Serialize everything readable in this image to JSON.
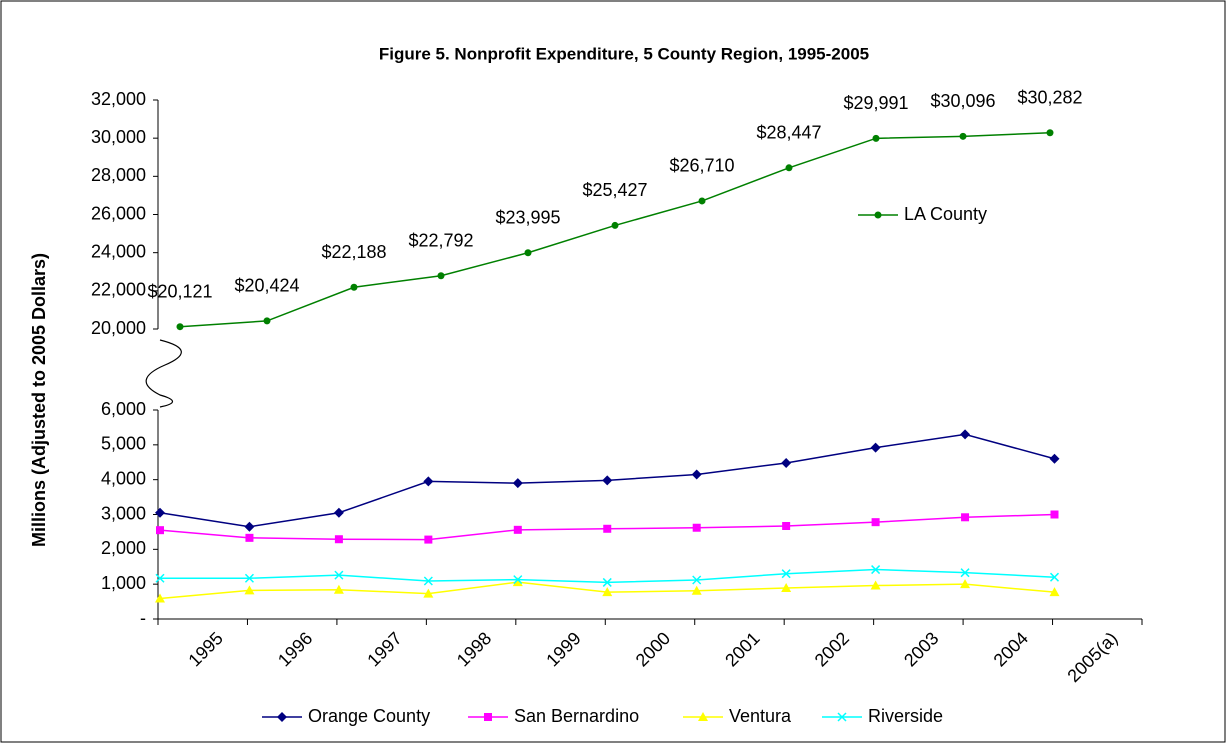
{
  "chart_data": [
    {
      "type": "line",
      "title": "Figure 5. Nonprofit Expenditure, 5 County Region, 1995-2005",
      "ylim": [
        20000,
        32000
      ],
      "yticks": [
        {
          "value": 20000,
          "label": "20,000"
        },
        {
          "value": 22000,
          "label": "22,000"
        },
        {
          "value": 24000,
          "label": "24,000"
        },
        {
          "value": 26000,
          "label": "26,000"
        },
        {
          "value": 28000,
          "label": "28,000"
        },
        {
          "value": 30000,
          "label": "30,000"
        },
        {
          "value": 32000,
          "label": "32,000"
        }
      ],
      "legend": "right",
      "series": [
        {
          "name": "LA County",
          "color": "#008000",
          "marker": "circle",
          "values": [
            20121,
            20424,
            22188,
            22792,
            23995,
            25427,
            26710,
            28447,
            29991,
            30096,
            30282
          ],
          "value_labels": [
            "$20,121",
            "$20,424",
            "$22,188",
            "$22,792",
            "$23,995",
            "$25,427",
            "$26,710",
            "$28,447",
            "$29,991",
            "$30,096",
            "$30,282"
          ]
        }
      ]
    },
    {
      "type": "line",
      "y_label": "Millions (Adjusted to 2005 Dollars)",
      "categories": [
        "1995",
        "1996",
        "1997",
        "1998",
        "1999",
        "2000",
        "2001",
        "2002",
        "2003",
        "2004",
        "2005(a)"
      ],
      "ylim": [
        0,
        6000
      ],
      "yticks": [
        {
          "value": 0,
          "label": "-"
        },
        {
          "value": 1000,
          "label": "1,000"
        },
        {
          "value": 2000,
          "label": "2,000"
        },
        {
          "value": 3000,
          "label": "3,000"
        },
        {
          "value": 4000,
          "label": "4,000"
        },
        {
          "value": 5000,
          "label": "5,000"
        },
        {
          "value": 6000,
          "label": "6,000"
        }
      ],
      "legend": "bottom",
      "series": [
        {
          "name": "Orange County",
          "color": "#000080",
          "marker": "diamond",
          "values": [
            3050,
            2650,
            3050,
            3950,
            3900,
            3980,
            4150,
            4480,
            4920,
            5300,
            4600
          ]
        },
        {
          "name": "San Bernardino",
          "color": "#FF00FF",
          "marker": "square",
          "values": [
            2550,
            2330,
            2290,
            2280,
            2560,
            2590,
            2620,
            2670,
            2780,
            2920,
            3000
          ]
        },
        {
          "name": "Ventura",
          "color": "#FFFF00",
          "marker": "triangle",
          "values": [
            590,
            820,
            840,
            730,
            1060,
            770,
            810,
            890,
            960,
            1000,
            770
          ]
        },
        {
          "name": "Riverside",
          "color": "#00FFFF",
          "marker": "x",
          "values": [
            1170,
            1170,
            1260,
            1090,
            1130,
            1050,
            1120,
            1300,
            1420,
            1330,
            1200
          ]
        }
      ]
    }
  ]
}
